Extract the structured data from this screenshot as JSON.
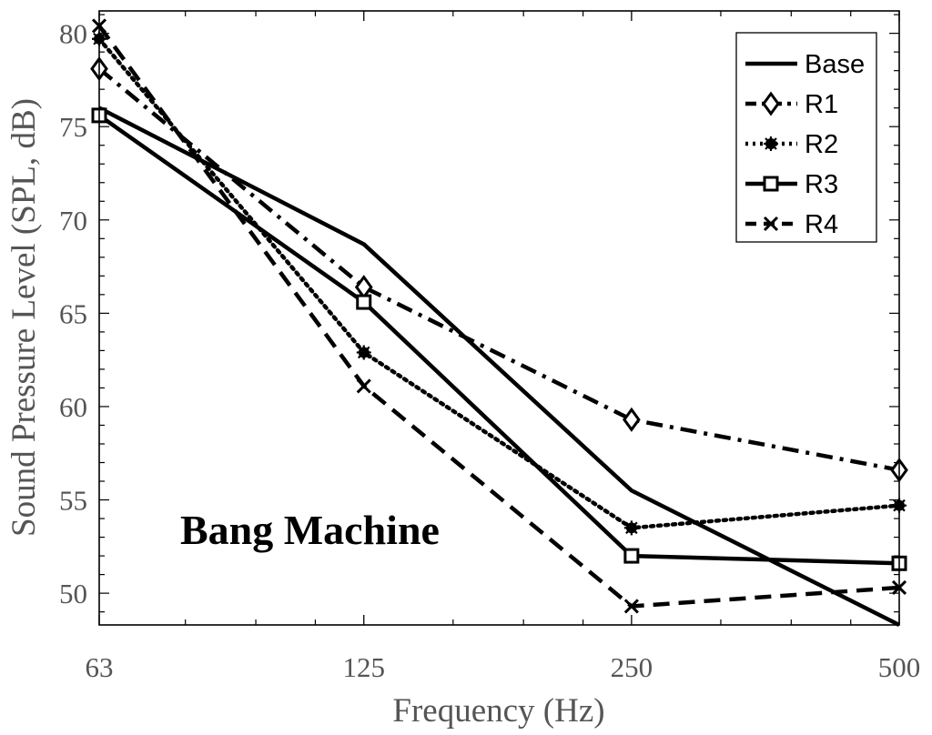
{
  "chart_data": {
    "type": "line",
    "title": "",
    "xlabel": "Frequency (Hz)",
    "ylabel": "Sound Pressure Level (SPL, dB)",
    "x_scale": "log2",
    "categories": [
      "63",
      "125",
      "250",
      "500"
    ],
    "x": [
      63,
      125,
      250,
      500
    ],
    "x_tick_labels": [
      "63",
      "125",
      "250",
      "500"
    ],
    "y_tick_labels": [
      "50",
      "55",
      "60",
      "65",
      "70",
      "75",
      "80"
    ],
    "y_ticks": [
      50,
      55,
      60,
      65,
      70,
      75,
      80
    ],
    "ylim": [
      48.3,
      81.2
    ],
    "xlim": [
      63,
      500
    ],
    "grid": false,
    "legend_position": "top-right",
    "annotation": "Bang Machine",
    "series": [
      {
        "name": "Base",
        "values": [
          76.0,
          68.7,
          55.5,
          48.3
        ],
        "line_style": "solid",
        "marker": "none",
        "color": "#000000"
      },
      {
        "name": "R1",
        "values": [
          78.1,
          66.4,
          59.3,
          56.6
        ],
        "line_style": "dashdot",
        "marker": "diamond",
        "color": "#000000"
      },
      {
        "name": "R2",
        "values": [
          79.7,
          62.9,
          53.5,
          54.7
        ],
        "line_style": "dotted",
        "marker": "asterisk",
        "color": "#000000"
      },
      {
        "name": "R3",
        "values": [
          75.6,
          65.6,
          52.0,
          51.6
        ],
        "line_style": "solid",
        "marker": "square",
        "color": "#000000"
      },
      {
        "name": "R4",
        "values": [
          80.4,
          61.1,
          49.3,
          50.3
        ],
        "line_style": "dashed",
        "marker": "x",
        "color": "#000000"
      }
    ]
  }
}
